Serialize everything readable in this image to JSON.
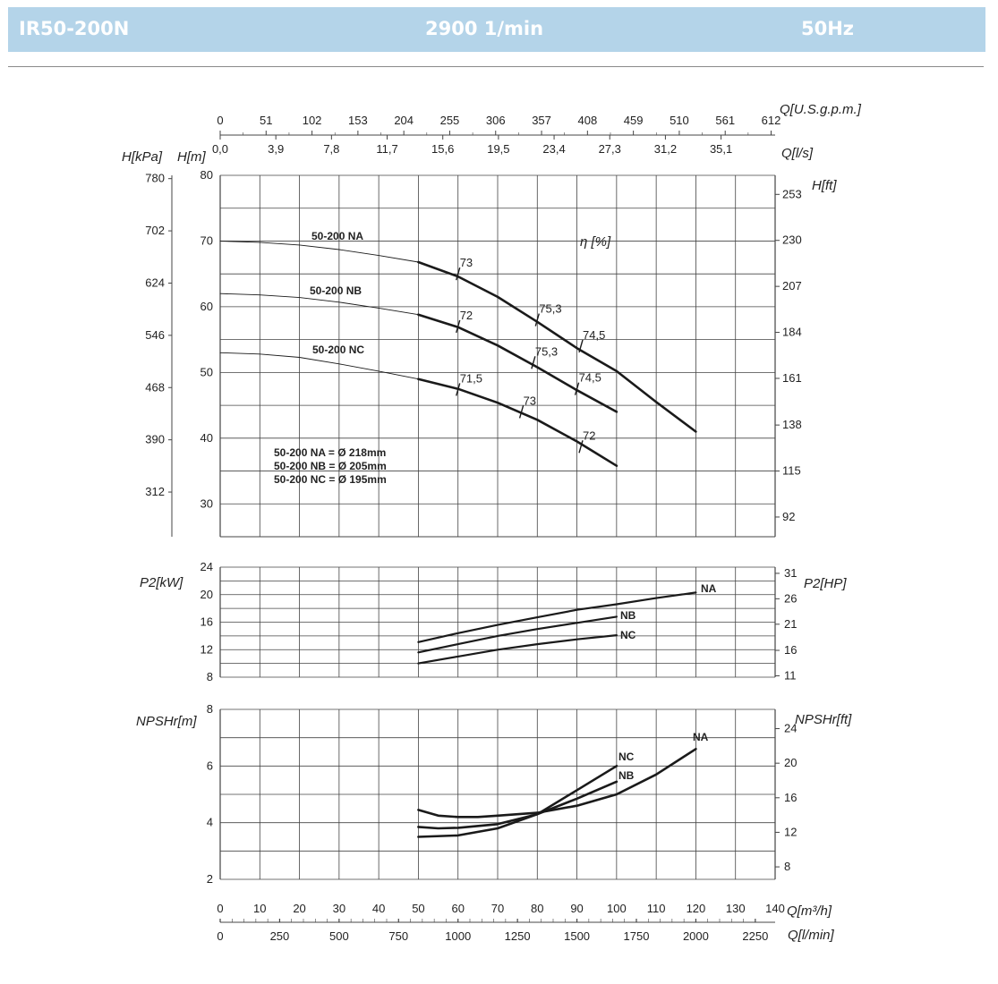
{
  "header": {
    "model": "IR50-200N",
    "speed": "2900 1/min",
    "frequency": "50Hz"
  },
  "colors": {
    "header_bg": "#b4d4e9",
    "header_text": "#ffffff",
    "curve": "#1a1a1a",
    "grid": "#333333"
  },
  "chart_data": [
    {
      "type": "line",
      "name": "head",
      "xlabel": "Q[m³/h]",
      "ylabel": "H[m]",
      "ylabel_kpa": "H[kPa]",
      "ylabel_ft": "H[ft]",
      "efficiency_label": "η [%]",
      "xlim": [
        0,
        140
      ],
      "ylim": [
        25,
        80
      ],
      "y_ticks": [
        "30",
        "40",
        "50",
        "60",
        "70",
        "80"
      ],
      "kpa_ticks": [
        {
          "value": 31.8,
          "label": "312"
        },
        {
          "value": 39.75,
          "label": "390"
        },
        {
          "value": 47.7,
          "label": "468"
        },
        {
          "value": 55.65,
          "label": "546"
        },
        {
          "value": 63.6,
          "label": "624"
        },
        {
          "value": 71.55,
          "label": "702"
        },
        {
          "value": 79.5,
          "label": "780"
        }
      ],
      "ft_ticks": [
        {
          "value": 28.0,
          "label": "92"
        },
        {
          "value": 35.0,
          "label": "115"
        },
        {
          "value": 42.0,
          "label": "138"
        },
        {
          "value": 49.1,
          "label": "161"
        },
        {
          "value": 56.1,
          "label": "184"
        },
        {
          "value": 63.1,
          "label": "207"
        },
        {
          "value": 70.1,
          "label": "230"
        },
        {
          "value": 77.1,
          "label": "253"
        }
      ],
      "series": [
        {
          "name": "50-200 NA",
          "thin": [
            [
              0,
              70
            ],
            [
              10,
              69.8
            ],
            [
              20,
              69.4
            ],
            [
              30,
              68.7
            ],
            [
              40,
              67.8
            ],
            [
              50,
              66.8
            ]
          ],
          "thick": [
            [
              50,
              66.8
            ],
            [
              60,
              64.6
            ],
            [
              70,
              61.5
            ],
            [
              80,
              57.7
            ],
            [
              90,
              53.7
            ],
            [
              100,
              50.2
            ],
            [
              110,
              45.5
            ],
            [
              120,
              41
            ]
          ]
        },
        {
          "name": "50-200 NB",
          "thin": [
            [
              0,
              62
            ],
            [
              10,
              61.8
            ],
            [
              20,
              61.4
            ],
            [
              30,
              60.7
            ],
            [
              40,
              59.8
            ],
            [
              50,
              58.8
            ]
          ],
          "thick": [
            [
              50,
              58.8
            ],
            [
              60,
              56.9
            ],
            [
              70,
              54.1
            ],
            [
              80,
              50.8
            ],
            [
              90,
              47.3
            ],
            [
              100,
              44
            ]
          ]
        },
        {
          "name": "50-200 NC",
          "thin": [
            [
              0,
              53
            ],
            [
              10,
              52.8
            ],
            [
              20,
              52.3
            ],
            [
              30,
              51.3
            ],
            [
              40,
              50.2
            ],
            [
              50,
              49
            ]
          ],
          "thick": [
            [
              50,
              49
            ],
            [
              60,
              47.5
            ],
            [
              70,
              45.4
            ],
            [
              80,
              42.8
            ],
            [
              90,
              39.5
            ],
            [
              100,
              35.8
            ]
          ]
        }
      ],
      "efficiency_marks": [
        {
          "x": 60,
          "y": 65.0,
          "label": "73"
        },
        {
          "x": 80,
          "y": 58.0,
          "label": "75,3"
        },
        {
          "x": 91,
          "y": 54.0,
          "label": "74,5"
        },
        {
          "x": 60,
          "y": 57.0,
          "label": "72"
        },
        {
          "x": 79,
          "y": 51.5,
          "label": "75,3"
        },
        {
          "x": 90,
          "y": 47.5,
          "label": "74,5"
        },
        {
          "x": 60,
          "y": 47.4,
          "label": "71,5"
        },
        {
          "x": 76,
          "y": 44.0,
          "label": "73"
        },
        {
          "x": 91,
          "y": 38.7,
          "label": "72"
        }
      ],
      "diameters": [
        "50-200 NA = Ø 218mm",
        "50-200 NB = Ø 205mm",
        "50-200 NC = Ø 195mm"
      ]
    },
    {
      "type": "line",
      "name": "power",
      "ylabel": "P2[kW]",
      "ylabel_hp": "P2[HP]",
      "xlim": [
        0,
        140
      ],
      "ylim": [
        8,
        24
      ],
      "y_ticks": [
        "8",
        "12",
        "16",
        "20",
        "24"
      ],
      "hp_ticks": [
        {
          "value": 8.2,
          "label": "11"
        },
        {
          "value": 11.9,
          "label": "16"
        },
        {
          "value": 15.7,
          "label": "21"
        },
        {
          "value": 19.4,
          "label": "26"
        },
        {
          "value": 23.1,
          "label": "31"
        }
      ],
      "series": [
        {
          "name": "NA",
          "points": [
            [
              50,
              13.1
            ],
            [
              60,
              14.4
            ],
            [
              70,
              15.6
            ],
            [
              80,
              16.7
            ],
            [
              90,
              17.8
            ],
            [
              100,
              18.6
            ],
            [
              110,
              19.5
            ],
            [
              120,
              20.3
            ]
          ]
        },
        {
          "name": "NB",
          "points": [
            [
              50,
              11.6
            ],
            [
              60,
              12.8
            ],
            [
              70,
              14
            ],
            [
              80,
              15
            ],
            [
              90,
              15.9
            ],
            [
              100,
              16.8
            ]
          ]
        },
        {
          "name": "NC",
          "points": [
            [
              50,
              10
            ],
            [
              60,
              11
            ],
            [
              70,
              12
            ],
            [
              80,
              12.8
            ],
            [
              90,
              13.5
            ],
            [
              100,
              14.1
            ]
          ]
        }
      ]
    },
    {
      "type": "line",
      "name": "npsh",
      "ylabel": "NPSHr[m]",
      "ylabel_ft": "NPSHr[ft]",
      "xlabel": "Q[m³/h]",
      "xlabel_ls": "Q[l/s]",
      "xlabel_gpm": "Q[U.S.g.p.m.]",
      "xlabel_lmin": "Q[l/min]",
      "xlim": [
        0,
        140
      ],
      "ylim": [
        2,
        8
      ],
      "y_ticks": [
        "2",
        "4",
        "6",
        "8"
      ],
      "ft_ticks": [
        {
          "value": 2.44,
          "label": "8"
        },
        {
          "value": 3.66,
          "label": "12"
        },
        {
          "value": 4.88,
          "label": "16"
        },
        {
          "value": 6.1,
          "label": "20"
        },
        {
          "value": 7.32,
          "label": "24"
        }
      ],
      "x_ticks_m3h": [
        "0",
        "10",
        "20",
        "30",
        "40",
        "50",
        "60",
        "70",
        "80",
        "90",
        "100",
        "110",
        "120",
        "130",
        "140"
      ],
      "x_ticks_lmin": [
        "0",
        "250",
        "500",
        "750",
        "1000",
        "1250",
        "1500",
        "1750",
        "2000",
        "2250"
      ],
      "x_ticks_ls": [
        "0,0",
        "3,9",
        "7,8",
        "11,7",
        "15,6",
        "19,5",
        "23,4",
        "27,3",
        "31,2",
        "35,1"
      ],
      "x_ticks_gpm": [
        "0",
        "51",
        "102",
        "153",
        "204",
        "255",
        "306",
        "357",
        "408",
        "459",
        "510",
        "561",
        "612"
      ],
      "series": [
        {
          "name": "NA",
          "points": [
            [
              50,
              4.45
            ],
            [
              55,
              4.25
            ],
            [
              60,
              4.2
            ],
            [
              65,
              4.2
            ],
            [
              70,
              4.25
            ],
            [
              80,
              4.35
            ],
            [
              90,
              4.6
            ],
            [
              100,
              5.0
            ],
            [
              110,
              5.7
            ],
            [
              120,
              6.6
            ]
          ]
        },
        {
          "name": "NB",
          "points": [
            [
              50,
              3.85
            ],
            [
              55,
              3.8
            ],
            [
              60,
              3.82
            ],
            [
              70,
              3.95
            ],
            [
              80,
              4.3
            ],
            [
              90,
              4.85
            ],
            [
              100,
              5.45
            ]
          ]
        },
        {
          "name": "NC",
          "points": [
            [
              50,
              3.5
            ],
            [
              60,
              3.55
            ],
            [
              70,
              3.8
            ],
            [
              80,
              4.3
            ],
            [
              90,
              5.15
            ],
            [
              100,
              6.0
            ]
          ]
        }
      ]
    }
  ]
}
